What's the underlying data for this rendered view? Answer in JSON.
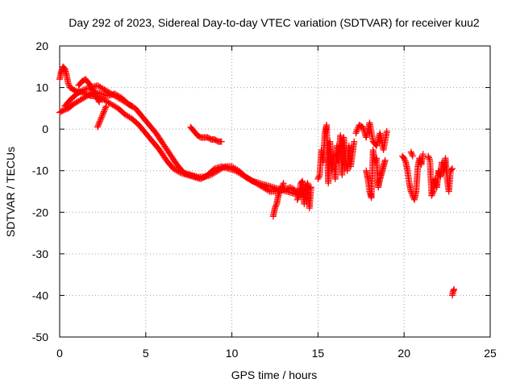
{
  "chart_data": {
    "type": "scatter",
    "title": "Day 292 of 2023, Sidereal Day-to-day VTEC variation (SDTVAR) for receiver kuu2",
    "xlabel": "GPS time / hours",
    "ylabel": "SDTVAR / TECUs",
    "xlim": [
      0,
      25
    ],
    "ylim": [
      -50,
      20
    ],
    "xticks": [
      0,
      5,
      10,
      15,
      20,
      25
    ],
    "yticks": [
      -50,
      -40,
      -30,
      -20,
      -10,
      0,
      10,
      20
    ],
    "xtick_labels": [
      "0",
      "5",
      "10",
      "15",
      "20",
      "25"
    ],
    "ytick_labels": [
      "-50",
      "-40",
      "-30",
      "-20",
      "-10",
      "0",
      "10",
      "20"
    ],
    "grid": true,
    "marker": "+",
    "color": "#ff0000",
    "series": [
      {
        "name": "SDTVAR",
        "segments": [
          {
            "x": [
              0.0,
              0.1,
              0.2,
              0.3,
              0.4,
              0.5,
              0.6,
              0.8,
              1.0,
              1.2,
              1.5,
              1.8,
              2.0,
              2.3,
              2.6,
              3.0,
              3.4,
              3.8,
              4.2,
              4.6,
              5.0,
              5.4,
              5.8,
              6.2,
              6.6,
              7.0,
              7.4,
              7.8,
              8.2,
              8.6,
              9.0,
              9.4,
              9.8,
              10.2,
              10.6,
              11.0,
              11.4,
              11.8,
              12.2,
              12.6,
              13.0,
              13.4,
              13.8,
              14.2,
              14.6
            ],
            "y": [
              12.0,
              14.0,
              15.0,
              14.5,
              13.0,
              11.0,
              10.0,
              9.5,
              9.0,
              9.0,
              8.5,
              8.0,
              8.0,
              7.5,
              7.0,
              6.0,
              5.0,
              3.5,
              2.5,
              1.0,
              -1.0,
              -3.0,
              -5.0,
              -7.5,
              -9.5,
              -10.5,
              -11.0,
              -11.5,
              -12.0,
              -11.0,
              -9.5,
              -9.0,
              -9.5,
              -10.0,
              -11.0,
              -12.0,
              -13.0,
              -14.0,
              -15.0,
              -15.0,
              -14.5,
              -14.0,
              -15.0,
              -14.5,
              -14.0
            ]
          },
          {
            "x": [
              0.0,
              0.2,
              0.5,
              0.8,
              1.2,
              1.6,
              2.0,
              2.4,
              2.8,
              3.2,
              3.6,
              4.0,
              4.4,
              4.8,
              5.2,
              5.6,
              6.0,
              6.4,
              6.8,
              7.2,
              7.6,
              8.0,
              8.4,
              8.8,
              9.2,
              9.6,
              10.0,
              10.4,
              10.8,
              11.2,
              11.6,
              12.0,
              12.4,
              12.8,
              13.2,
              13.6,
              14.0,
              14.4
            ],
            "y": [
              4.0,
              4.5,
              5.0,
              6.0,
              7.0,
              8.0,
              9.0,
              8.5,
              8.0,
              8.5,
              7.5,
              6.0,
              5.0,
              3.0,
              1.0,
              -1.0,
              -3.5,
              -6.0,
              -8.5,
              -10.5,
              -11.0,
              -11.5,
              -11.5,
              -11.0,
              -10.0,
              -9.0,
              -9.0,
              -10.0,
              -11.5,
              -12.5,
              -13.0,
              -13.5,
              -14.0,
              -14.5,
              -15.0,
              -15.5,
              -16.0,
              -15.5
            ]
          },
          {
            "x": [
              0.3,
              0.6,
              1.0,
              1.4,
              1.8,
              2.2,
              2.6,
              3.0,
              3.4,
              3.8,
              4.2
            ],
            "y": [
              5.5,
              7.0,
              8.5,
              9.5,
              10.0,
              10.5,
              9.5,
              8.5,
              7.5,
              6.5,
              5.5
            ]
          },
          {
            "x": [
              1.1,
              1.3,
              1.5,
              1.7,
              1.9,
              2.1,
              2.3
            ],
            "y": [
              10.5,
              11.5,
              12.0,
              11.0,
              9.5,
              8.0,
              6.5
            ]
          },
          {
            "x": [
              2.2,
              2.3,
              2.4,
              2.5,
              2.6,
              2.7
            ],
            "y": [
              0.5,
              1.5,
              2.5,
              3.5,
              4.5,
              5.5
            ]
          },
          {
            "x": [
              7.6,
              7.8,
              8.0,
              8.2,
              8.4,
              8.6,
              8.8,
              9.0,
              9.2,
              9.4
            ],
            "y": [
              0.5,
              -0.5,
              -1.5,
              -2.0,
              -2.0,
              -2.0,
              -2.5,
              -2.5,
              -3.0,
              -3.0
            ]
          },
          {
            "x": [
              12.4,
              12.5,
              12.6,
              12.7,
              12.8,
              12.9,
              13.0
            ],
            "y": [
              -21.0,
              -19.0,
              -18.0,
              -16.0,
              -15.0,
              -14.0,
              -13.0
            ]
          },
          {
            "x": [
              13.8,
              13.9,
              14.0,
              14.1,
              14.2,
              14.3,
              14.4,
              14.5,
              14.6
            ],
            "y": [
              -17.0,
              -16.0,
              -13.0,
              -12.5,
              -18.0,
              -14.0,
              -13.0,
              -19.0,
              -14.0
            ]
          },
          {
            "x": [
              15.0,
              15.1,
              15.2,
              15.3,
              15.4,
              15.5,
              15.6,
              15.7,
              15.8,
              15.9,
              16.0,
              16.1,
              16.2,
              16.3,
              16.4,
              16.5,
              16.6,
              16.7,
              16.8,
              16.9,
              17.0,
              17.1
            ],
            "y": [
              -12.0,
              -11.0,
              -5.0,
              -8.0,
              -1.0,
              1.0,
              -13.0,
              -3.0,
              -10.0,
              -6.0,
              -12.0,
              -4.0,
              -8.0,
              -1.5,
              -11.0,
              -2.0,
              -7.0,
              -10.0,
              -4.0,
              -9.0,
              -6.0,
              -3.0
            ]
          },
          {
            "x": [
              17.2,
              17.4,
              17.6,
              17.8,
              18.0,
              18.2,
              18.4,
              18.6,
              18.8,
              19.0
            ],
            "y": [
              -1.0,
              1.0,
              0.5,
              -2.0,
              1.5,
              -3.0,
              -4.0,
              -1.0,
              -5.0,
              -0.5
            ]
          },
          {
            "x": [
              17.8,
              17.9,
              18.0,
              18.1,
              18.2,
              18.3,
              18.4,
              18.5,
              18.6,
              18.7,
              18.8,
              18.9
            ],
            "y": [
              -10.0,
              -12.0,
              -15.0,
              -16.5,
              -5.0,
              -8.0,
              -7.0,
              -14.0,
              -12.0,
              -10.5,
              -9.0,
              -7.5
            ]
          },
          {
            "x": [
              19.9,
              20.0,
              20.1,
              20.2,
              20.3,
              20.4,
              20.5,
              20.6,
              20.7,
              20.8,
              20.9,
              21.0,
              21.1
            ],
            "y": [
              -6.5,
              -7.0,
              -8.0,
              -10.0,
              -13.0,
              -15.0,
              -16.0,
              -17.0,
              -15.0,
              -9.0,
              -7.0,
              -8.5,
              -6.0
            ]
          },
          {
            "x": [
              20.4,
              20.5
            ],
            "y": [
              -5.5,
              -6.5
            ]
          },
          {
            "x": [
              21.4,
              21.5,
              21.6,
              21.7,
              21.8,
              21.9,
              22.0,
              22.1,
              22.2,
              22.3,
              22.4,
              22.5,
              22.6,
              22.7,
              22.8
            ],
            "y": [
              -6.5,
              -7.5,
              -16.0,
              -15.0,
              -12.0,
              -14.0,
              -10.0,
              -11.5,
              -8.0,
              -10.5,
              -7.0,
              -12.0,
              -15.0,
              -10.0,
              -9.5
            ]
          },
          {
            "x": [
              22.8,
              22.85,
              22.9
            ],
            "y": [
              -40.0,
              -39.0,
              -38.5
            ]
          }
        ]
      }
    ]
  }
}
